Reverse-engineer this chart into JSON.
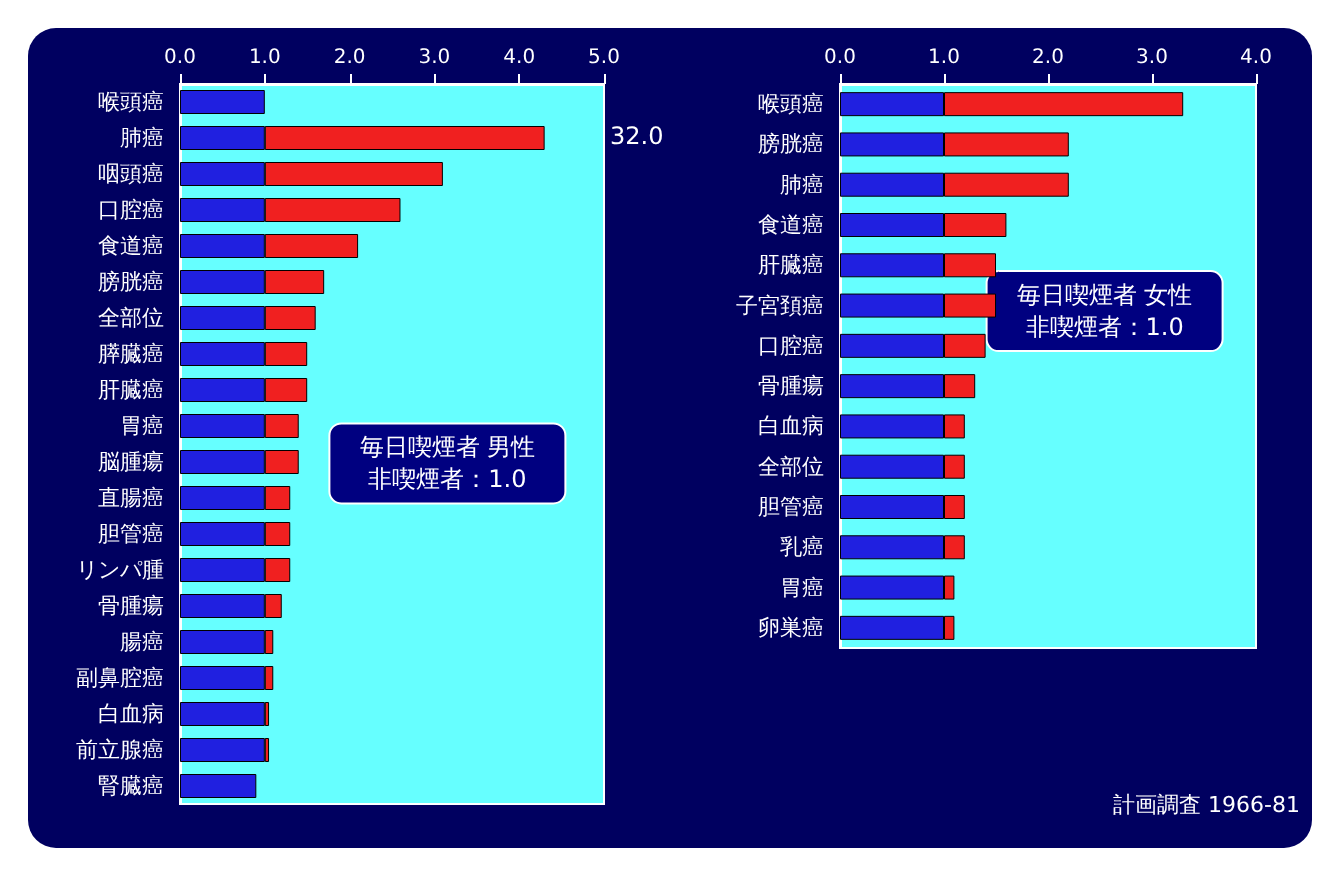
{
  "chart_data": [
    {
      "type": "bar",
      "orientation": "horizontal",
      "stacked": true,
      "grid": false,
      "categories": [
        "喉頭癌",
        "肺癌",
        "咽頭癌",
        "口腔癌",
        "食道癌",
        "膀胱癌",
        "全部位",
        "膵臓癌",
        "肝臓癌",
        "胃癌",
        "脳腫瘍",
        "直腸癌",
        "胆管癌",
        "リンパ腫",
        "骨腫瘍",
        "腸癌",
        "副鼻腔癌",
        "白血病",
        "前立腺癌",
        "腎臓癌"
      ],
      "series": [
        {
          "color": "#2020e0",
          "values": [
            1.0,
            1.0,
            1.0,
            1.0,
            1.0,
            1.0,
            1.0,
            1.0,
            1.0,
            1.0,
            1.0,
            1.0,
            1.0,
            1.0,
            1.0,
            1.0,
            1.0,
            1.0,
            1.0,
            0.9
          ]
        },
        {
          "color": "#f02020",
          "values": [
            null,
            3.3,
            2.1,
            1.6,
            1.1,
            0.7,
            0.6,
            0.5,
            0.5,
            0.4,
            0.4,
            0.3,
            0.3,
            0.3,
            0.2,
            0.1,
            0.1,
            0.05,
            0.05,
            null
          ]
        }
      ],
      "xlim": [
        0,
        5
      ],
      "xticks": [
        {
          "value": 0,
          "label": "0.0"
        },
        {
          "value": 1,
          "label": "1.0"
        },
        {
          "value": 2,
          "label": "2.0"
        },
        {
          "value": 3,
          "label": "3.0"
        },
        {
          "value": 4,
          "label": "4.0"
        },
        {
          "value": 5,
          "label": "5.0"
        }
      ],
      "annotations": [
        "毎日喫煙者 男性",
        "非喫煙者：1.0",
        "32.0"
      ]
    },
    {
      "type": "bar",
      "orientation": "horizontal",
      "stacked": true,
      "grid": false,
      "categories": [
        "喉頭癌",
        "膀胱癌",
        "肺癌",
        "食道癌",
        "肝臓癌",
        "子宮頚癌",
        "口腔癌",
        "骨腫瘍",
        "白血病",
        "全部位",
        "胆管癌",
        "乳癌",
        "胃癌",
        "卵巣癌"
      ],
      "series": [
        {
          "color": "#2020e0",
          "values": [
            1.0,
            1.0,
            1.0,
            1.0,
            1.0,
            1.0,
            1.0,
            1.0,
            1.0,
            1.0,
            1.0,
            1.0,
            1.0,
            1.0
          ]
        },
        {
          "color": "#f02020",
          "values": [
            2.3,
            1.2,
            1.2,
            0.6,
            0.5,
            0.5,
            0.4,
            0.3,
            0.2,
            0.2,
            0.2,
            0.2,
            0.1,
            0.1
          ]
        }
      ],
      "xlim": [
        0,
        4
      ],
      "xticks": [
        {
          "value": 0,
          "label": "0.0"
        },
        {
          "value": 1,
          "label": "1.0"
        },
        {
          "value": 2,
          "label": "2.0"
        },
        {
          "value": 3,
          "label": "3.0"
        },
        {
          "value": 4,
          "label": "4.0"
        }
      ],
      "annotations": [
        "毎日喫煙者 女性",
        "非喫煙者：1.0",
        "計画調査 1966-81"
      ]
    }
  ]
}
